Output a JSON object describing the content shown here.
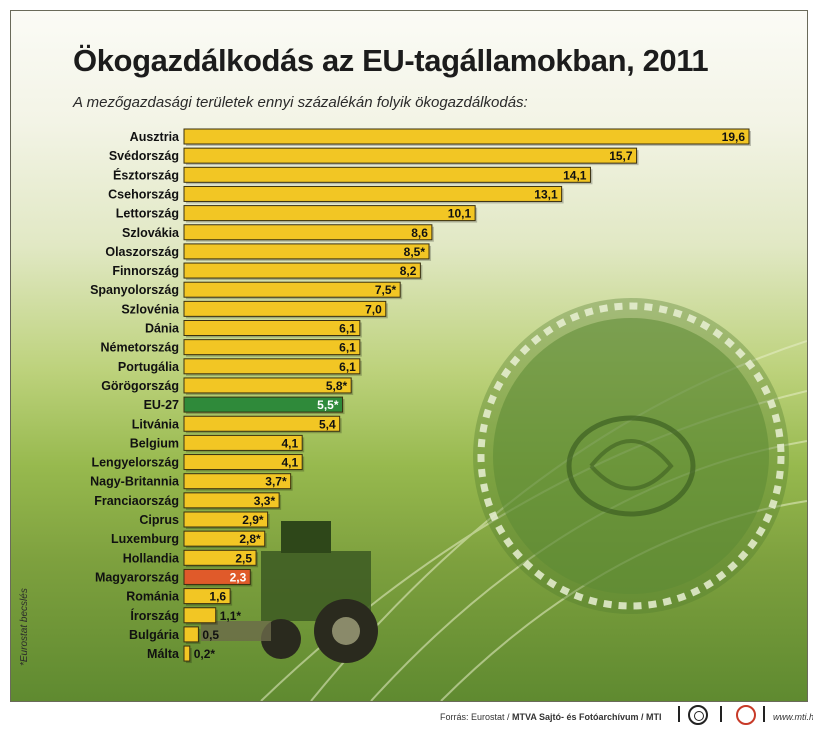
{
  "chart_data": {
    "type": "bar",
    "orientation": "horizontal",
    "title": "Ökogazdálkodás az EU-tagállamokban, 2011",
    "subtitle": "A mezőgazdasági területek ennyi százalékán folyik ökogazdálkodás:",
    "xlim": [
      0,
      19.6
    ],
    "categories": [
      "Ausztria",
      "Svédország",
      "Észtország",
      "Csehország",
      "Lettország",
      "Szlovákia",
      "Olaszország",
      "Finnország",
      "Spanyolország",
      "Szlovénia",
      "Dánia",
      "Németország",
      "Portugália",
      "Görögország",
      "EU-27",
      "Litvánia",
      "Belgium",
      "Lengyelország",
      "Nagy-Britannia",
      "Franciaország",
      "Ciprus",
      "Luxemburg",
      "Hollandia",
      "Magyarország",
      "Románia",
      "Írország",
      "Bulgária",
      "Málta"
    ],
    "values": [
      19.6,
      15.7,
      14.1,
      13.1,
      10.1,
      8.6,
      8.5,
      8.2,
      7.5,
      7.0,
      6.1,
      6.1,
      6.1,
      5.8,
      5.5,
      5.4,
      4.1,
      4.1,
      3.7,
      3.3,
      2.9,
      2.8,
      2.5,
      2.3,
      1.6,
      1.1,
      0.5,
      0.2
    ],
    "value_labels": [
      "19,6",
      "15,7",
      "14,1",
      "13,1",
      "10,1",
      "8,6",
      "8,5*",
      "8,2",
      "7,5*",
      "7,0",
      "6,1",
      "6,1",
      "6,1",
      "5,8*",
      "5,5*",
      "5,4",
      "4,1",
      "4,1",
      "3,7*",
      "3,3*",
      "2,9*",
      "2,8*",
      "2,5",
      "2,3",
      "1,6",
      "1,1*",
      "0,5",
      "0,2*"
    ],
    "highlight": {
      "EU-27": "#2f8a3a",
      "Magyarország": "#e05a2a"
    },
    "bar_color": "#f2c624",
    "grid": false,
    "legend": "none"
  },
  "footnote": "*Eurostat becslés",
  "source": {
    "prefix": "Forrás: Eurostat / ",
    "agency": "MTVA Sajtó- és Fotóarchívum / MTI",
    "site": "www.mti.hu"
  },
  "icons": [
    "mtva-logo-icon",
    "mti-logo-icon"
  ]
}
